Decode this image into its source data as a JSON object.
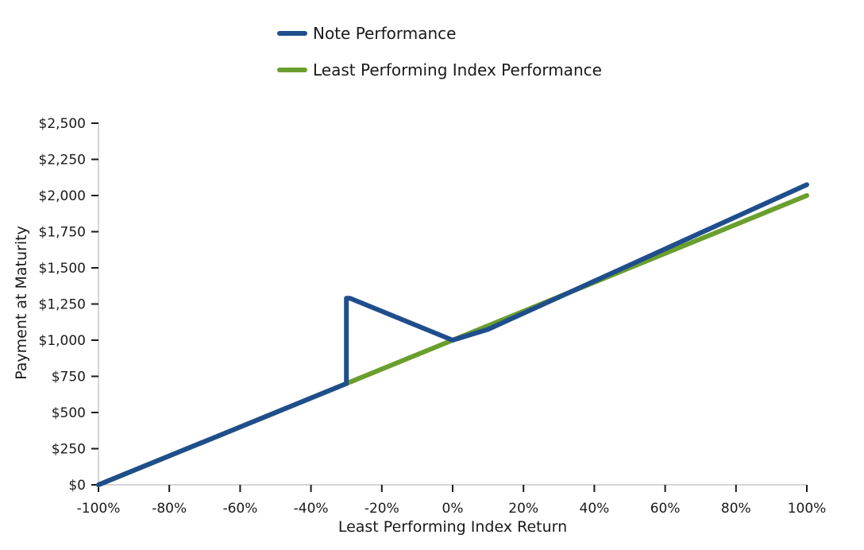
{
  "chart_data": {
    "type": "line",
    "title": "",
    "xlabel": "Least Performing Index Return",
    "ylabel": "Payment at Maturity",
    "xlim": [
      -100,
      100
    ],
    "ylim": [
      0,
      2500
    ],
    "x_ticks": [
      -100,
      -80,
      -60,
      -40,
      -20,
      0,
      20,
      40,
      60,
      80,
      100
    ],
    "x_tick_labels": [
      "-100%",
      "-80%",
      "-60%",
      "-40%",
      "-20%",
      "0%",
      "20%",
      "40%",
      "60%",
      "80%",
      "100%"
    ],
    "y_ticks": [
      0,
      250,
      500,
      750,
      1000,
      1250,
      1500,
      1750,
      2000,
      2250,
      2500
    ],
    "y_tick_labels": [
      "$0",
      "$250",
      "$500",
      "$750",
      "$1,000",
      "$1,250",
      "$1,500",
      "$1,750",
      "$2,000",
      "$2,250",
      "$2,500"
    ],
    "grid": false,
    "legend_position": "top-center",
    "series": [
      {
        "name": "Note Performance",
        "color": "#1f4e8c",
        "x": [
          -100,
          -30,
          -30,
          -29,
          0,
          10,
          100
        ],
        "y": [
          0,
          700,
          1290,
          1290,
          1000,
          1075,
          2075
        ]
      },
      {
        "name": "Least Performing Index Performance",
        "color": "#6a9f2e",
        "x": [
          -100,
          100
        ],
        "y": [
          0,
          2000
        ]
      }
    ]
  }
}
